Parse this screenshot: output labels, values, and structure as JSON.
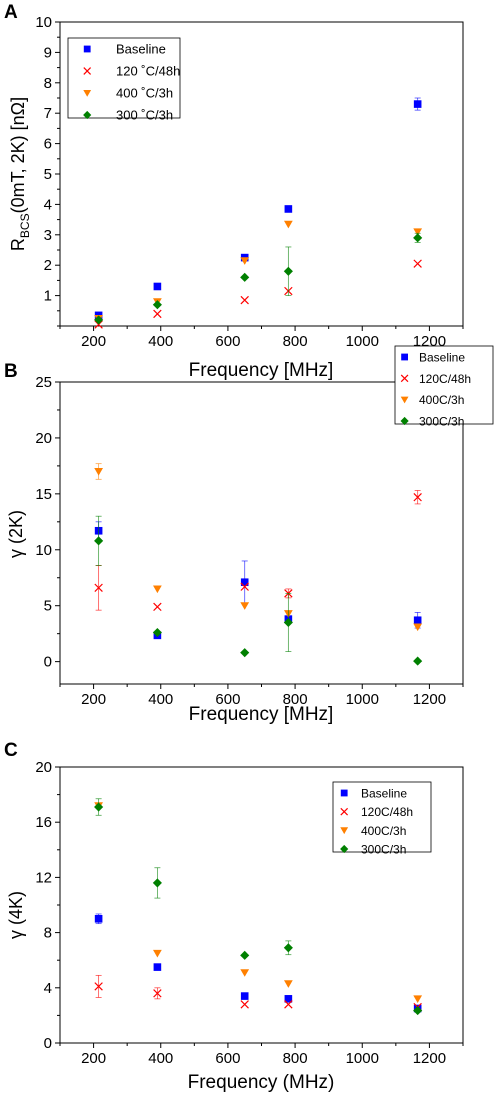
{
  "colors": {
    "baseline": "#0000ff",
    "c120": "#ff0000",
    "c400": "#ff8000",
    "c300": "#008000"
  },
  "chart_data": [
    {
      "panel_label": "A",
      "type": "scatter",
      "xlabel": "Frequency [MHz]",
      "ylabel_main": "R",
      "ylabel_sub": "BCS",
      "ylabel_rest": "(0mT, 2K) [nΩ]",
      "xlim": [
        100,
        1300
      ],
      "ylim": [
        0,
        10
      ],
      "xticks": [
        200,
        400,
        600,
        800,
        1000,
        1200
      ],
      "yticks": [
        1,
        2,
        3,
        4,
        5,
        6,
        7,
        8,
        9,
        10
      ],
      "grid": false,
      "legend_position": "top-left",
      "series": [
        {
          "name": "Baseline",
          "marker": "square",
          "color_key": "baseline",
          "points": [
            {
              "x": 215,
              "y": 0.35
            },
            {
              "x": 390,
              "y": 1.3
            },
            {
              "x": 650,
              "y": 2.25
            },
            {
              "x": 780,
              "y": 3.85
            },
            {
              "x": 1165,
              "y": 7.3,
              "err": 0.2
            }
          ]
        },
        {
          "name": "120 ˚C/48h",
          "marker": "x",
          "color_key": "c120",
          "points": [
            {
              "x": 215,
              "y": 0.05
            },
            {
              "x": 390,
              "y": 0.4
            },
            {
              "x": 650,
              "y": 0.85
            },
            {
              "x": 780,
              "y": 1.15
            },
            {
              "x": 1165,
              "y": 2.05
            }
          ]
        },
        {
          "name": "400 ˚C/3h",
          "marker": "triangle-down",
          "color_key": "c400",
          "points": [
            {
              "x": 215,
              "y": 0.25
            },
            {
              "x": 390,
              "y": 0.8
            },
            {
              "x": 650,
              "y": 2.15
            },
            {
              "x": 780,
              "y": 3.35
            },
            {
              "x": 1165,
              "y": 3.1
            }
          ]
        },
        {
          "name": "300 ˚C/3h",
          "marker": "diamond",
          "color_key": "c300",
          "points": [
            {
              "x": 215,
              "y": 0.2
            },
            {
              "x": 390,
              "y": 0.7
            },
            {
              "x": 650,
              "y": 1.6
            },
            {
              "x": 780,
              "y": 1.8,
              "err": 0.8
            },
            {
              "x": 1165,
              "y": 2.9,
              "err": 0.15
            }
          ]
        }
      ]
    },
    {
      "panel_label": "B",
      "type": "scatter",
      "xlabel": "Frequency [MHz]",
      "ylabel": "γ (2K)",
      "xlim": [
        100,
        1300
      ],
      "ylim": [
        -2,
        25
      ],
      "xticks": [
        200,
        400,
        600,
        800,
        1000,
        1200
      ],
      "yticks": [
        0,
        5,
        10,
        15,
        20,
        25
      ],
      "grid": false,
      "legend_position": "top-right",
      "series": [
        {
          "name": "Baseline",
          "marker": "square",
          "color_key": "baseline",
          "points": [
            {
              "x": 215,
              "y": 11.7,
              "err": 0.8
            },
            {
              "x": 390,
              "y": 2.35
            },
            {
              "x": 650,
              "y": 7.1,
              "err": 1.9
            },
            {
              "x": 780,
              "y": 3.8
            },
            {
              "x": 1165,
              "y": 3.7,
              "err": 0.7
            }
          ]
        },
        {
          "name": "120C/48h",
          "marker": "x",
          "color_key": "c120",
          "points": [
            {
              "x": 215,
              "y": 6.6,
              "err": 2.0
            },
            {
              "x": 390,
              "y": 4.9
            },
            {
              "x": 650,
              "y": 6.7
            },
            {
              "x": 780,
              "y": 6.1,
              "err": 0.4
            },
            {
              "x": 1165,
              "y": 14.7,
              "err": 0.6
            }
          ]
        },
        {
          "name": "400C/3h",
          "marker": "triangle-down",
          "color_key": "c400",
          "points": [
            {
              "x": 215,
              "y": 17.0,
              "err": 0.7
            },
            {
              "x": 390,
              "y": 6.5
            },
            {
              "x": 650,
              "y": 5.0
            },
            {
              "x": 780,
              "y": 4.3
            },
            {
              "x": 1165,
              "y": 3.1
            }
          ]
        },
        {
          "name": "300C/3h",
          "marker": "diamond",
          "color_key": "c300",
          "points": [
            {
              "x": 215,
              "y": 10.8,
              "err": 2.2
            },
            {
              "x": 390,
              "y": 2.6
            },
            {
              "x": 650,
              "y": 0.8
            },
            {
              "x": 780,
              "y": 3.5,
              "err": 2.6
            },
            {
              "x": 1165,
              "y": 0.05
            }
          ]
        }
      ]
    },
    {
      "panel_label": "C",
      "type": "scatter",
      "xlabel": "Frequency (MHz)",
      "ylabel": "γ (4K)",
      "xlim": [
        100,
        1300
      ],
      "ylim": [
        0,
        20
      ],
      "xticks": [
        200,
        400,
        600,
        800,
        1000,
        1200
      ],
      "yticks": [
        0,
        4,
        8,
        12,
        16,
        20
      ],
      "grid": false,
      "legend_position": "top-right",
      "series": [
        {
          "name": "Baseline",
          "marker": "square",
          "color_key": "baseline",
          "points": [
            {
              "x": 215,
              "y": 9.0,
              "err": 0.35
            },
            {
              "x": 390,
              "y": 5.5
            },
            {
              "x": 650,
              "y": 3.4
            },
            {
              "x": 780,
              "y": 3.2
            },
            {
              "x": 1165,
              "y": 2.5
            }
          ]
        },
        {
          "name": "120C/48h",
          "marker": "x",
          "color_key": "c120",
          "points": [
            {
              "x": 215,
              "y": 4.1,
              "err": 0.8
            },
            {
              "x": 390,
              "y": 3.6,
              "err": 0.4
            },
            {
              "x": 650,
              "y": 2.8
            },
            {
              "x": 780,
              "y": 2.8
            },
            {
              "x": 1165,
              "y": 2.6
            }
          ]
        },
        {
          "name": "400C/3h",
          "marker": "triangle-down",
          "color_key": "c400",
          "points": [
            {
              "x": 215,
              "y": 17.2
            },
            {
              "x": 390,
              "y": 6.5
            },
            {
              "x": 650,
              "y": 5.1
            },
            {
              "x": 780,
              "y": 4.3
            },
            {
              "x": 1165,
              "y": 3.2
            }
          ]
        },
        {
          "name": "300C/3h",
          "marker": "diamond",
          "color_key": "c300",
          "points": [
            {
              "x": 215,
              "y": 17.1,
              "err": 0.6
            },
            {
              "x": 390,
              "y": 11.6,
              "err": 1.1
            },
            {
              "x": 650,
              "y": 6.35
            },
            {
              "x": 780,
              "y": 6.9,
              "err": 0.5
            },
            {
              "x": 1165,
              "y": 2.35
            }
          ]
        }
      ]
    }
  ]
}
